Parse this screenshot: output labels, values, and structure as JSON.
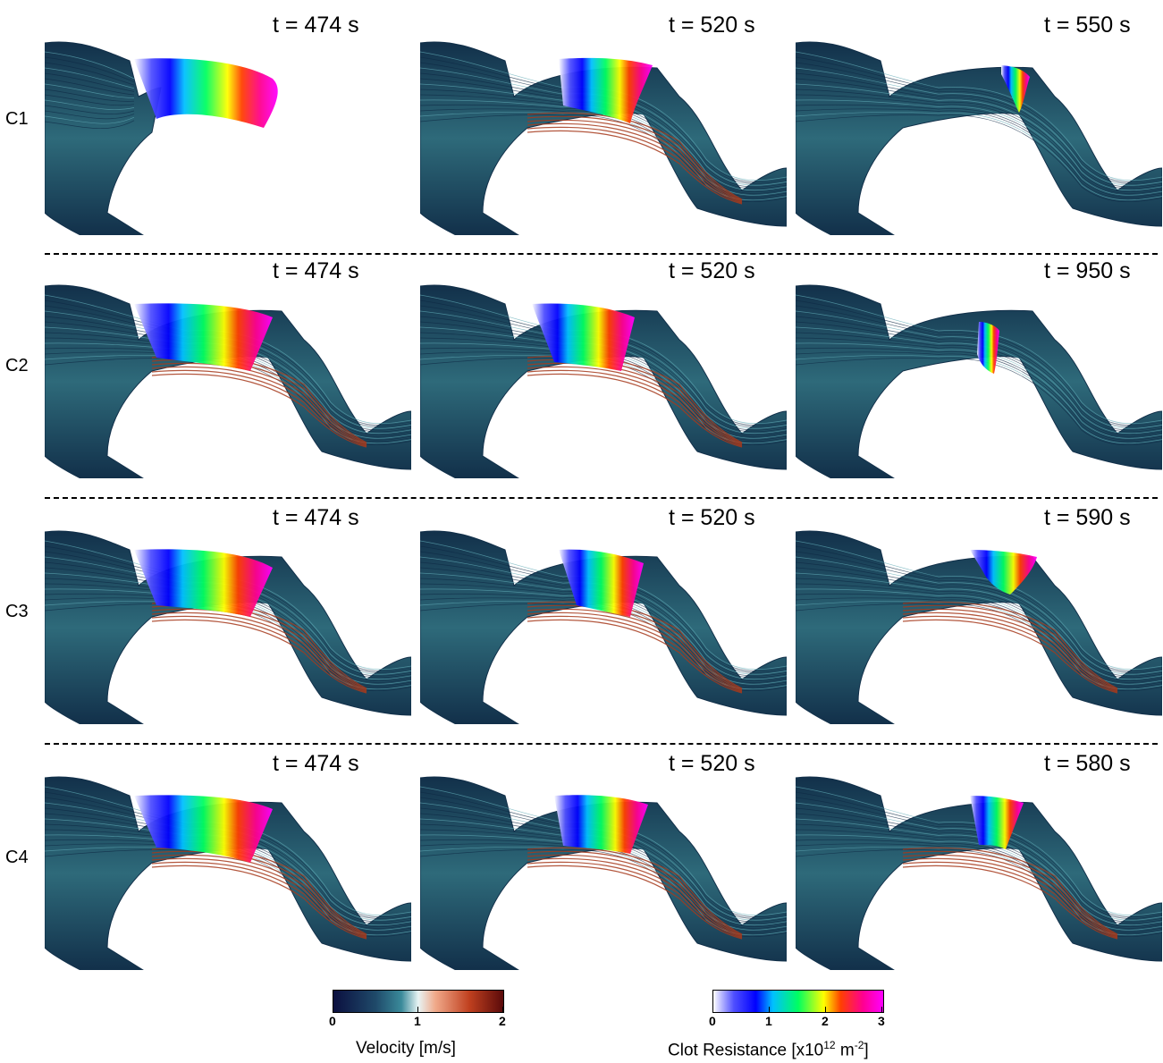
{
  "rows": [
    {
      "label": "C1",
      "times": [
        "t = 474 s",
        "t = 520 s",
        "t = 550 s"
      ]
    },
    {
      "label": "C2",
      "times": [
        "t = 474 s",
        "t = 520 s",
        "t = 950 s"
      ]
    },
    {
      "label": "C3",
      "times": [
        "t = 474 s",
        "t = 520 s",
        "t = 590 s"
      ]
    },
    {
      "label": "C4",
      "times": [
        "t = 474 s",
        "t = 520 s",
        "t = 580 s"
      ]
    }
  ],
  "legend": {
    "velocity": {
      "title": "Velocity [m/s]",
      "ticks": [
        "0",
        "1",
        "2"
      ]
    },
    "clot": {
      "title_main": "Clot Resistance [x10",
      "title_exp": "12",
      "title_unit": " m",
      "title_unit_exp": "-2",
      "title_end": "]",
      "ticks": [
        "0",
        "1",
        "2",
        "3"
      ]
    }
  },
  "colors": {
    "vessel": "#2e6a7a",
    "vessel_dark": "#12304a",
    "fast_flow": "#a6391c"
  }
}
